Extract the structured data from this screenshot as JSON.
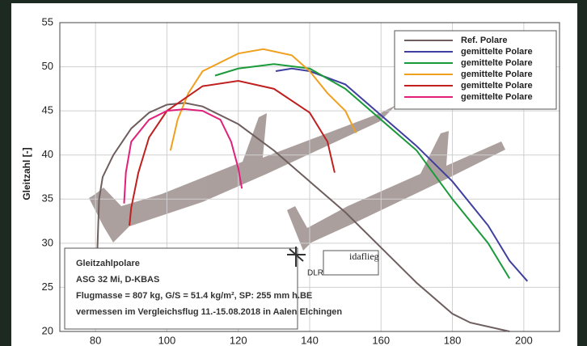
{
  "chart_data": {
    "type": "line",
    "y_label": "Gleitzahl [-]",
    "xlim": [
      70,
      210
    ],
    "ylim": [
      20,
      55
    ],
    "xticks": [
      80,
      100,
      120,
      140,
      160,
      180,
      200
    ],
    "yticks": [
      20,
      25,
      30,
      35,
      40,
      45,
      50,
      55
    ],
    "grid": true,
    "legend": "top-right",
    "series": [
      {
        "name": "Ref. Polare",
        "color": "#6e5e5e",
        "x": [
          80.5,
          81,
          82,
          85,
          90,
          95,
          100,
          105,
          110,
          120,
          130,
          140,
          150,
          160,
          170,
          180,
          185,
          196
        ],
        "values": [
          29,
          35,
          37.5,
          40,
          43,
          44.8,
          45.7,
          45.9,
          45.5,
          43.5,
          40.5,
          37,
          33.5,
          29.5,
          25.5,
          22,
          21,
          20
        ]
      },
      {
        "name": "gemittelte Polare",
        "color": "#3f3f9f",
        "x": [
          130.5,
          135,
          140,
          150,
          160,
          170,
          180,
          190,
          196,
          201
        ],
        "values": [
          49.5,
          49.8,
          49.5,
          48,
          44.5,
          41,
          37,
          32,
          28,
          25.7
        ]
      },
      {
        "name": "gemittelte Polare",
        "color": "#1a9a3a",
        "x": [
          113.5,
          120,
          130,
          140,
          150,
          160,
          170,
          180,
          190,
          196
        ],
        "values": [
          49,
          49.8,
          50.3,
          49.8,
          47.5,
          44,
          40.5,
          35,
          30,
          26
        ]
      },
      {
        "name": "gemittelte Polare",
        "color": "#f0a020",
        "x": [
          101,
          103,
          106,
          110,
          120,
          127,
          135,
          140,
          145,
          150,
          153
        ],
        "values": [
          40.5,
          44,
          47,
          49.5,
          51.5,
          52,
          51.3,
          49.5,
          47,
          45,
          42.5
        ]
      },
      {
        "name": "gemittelte Polare",
        "color": "#c02020",
        "x": [
          89.5,
          90,
          92,
          95,
          100,
          110,
          120,
          130,
          140,
          145,
          147
        ],
        "values": [
          32,
          34,
          38,
          42,
          45,
          47.8,
          48.4,
          47.5,
          44.8,
          41.5,
          38
        ]
      },
      {
        "name": "gemittelte Polare",
        "color": "#e0207a",
        "x": [
          88,
          88.5,
          90,
          95,
          100,
          105,
          110,
          115,
          118,
          120,
          121
        ],
        "values": [
          34.5,
          38,
          41.5,
          44,
          45,
          45.2,
          45,
          44,
          41.5,
          38.5,
          36.2
        ]
      }
    ],
    "info": [
      "Gleitzahlpolare",
      "ASG 32 Mi, D-KBAS",
      "Flugmasse = 807 kg, G/S = 51.4 kg/m², SP: 255 mm h.BE",
      "vermessen im Vergleichsflug 11.-15.08.2018 in Aalen Elchingen"
    ],
    "logos": [
      "DLR",
      "idaflieg"
    ]
  }
}
